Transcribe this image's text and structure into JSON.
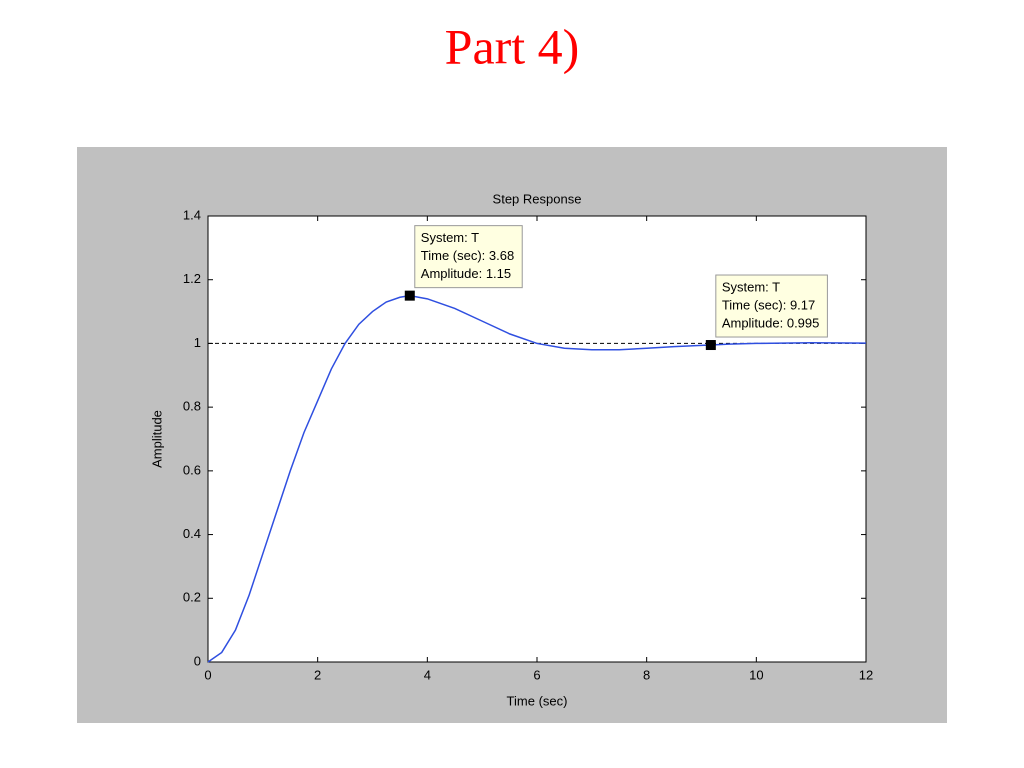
{
  "slide_title": "Part 4)",
  "chart_data": {
    "type": "line",
    "title": "Step Response",
    "x_label": "Time (sec)",
    "y_label": "Amplitude",
    "x": [
      0,
      0.25,
      0.5,
      0.75,
      1,
      1.25,
      1.5,
      1.75,
      2,
      2.25,
      2.5,
      2.75,
      3,
      3.25,
      3.5,
      3.68,
      4,
      4.5,
      5,
      5.5,
      6,
      6.5,
      7,
      7.5,
      8,
      8.5,
      9,
      9.17,
      9.5,
      10,
      11,
      12
    ],
    "series": [
      {
        "name": "T",
        "color": "#2f4fe0",
        "values": [
          0,
          0.03,
          0.1,
          0.21,
          0.34,
          0.47,
          0.6,
          0.72,
          0.82,
          0.92,
          1.0,
          1.06,
          1.1,
          1.13,
          1.145,
          1.15,
          1.14,
          1.11,
          1.07,
          1.03,
          1.0,
          0.985,
          0.98,
          0.98,
          0.985,
          0.99,
          0.994,
          0.995,
          0.998,
          1.0,
          1.002,
          1.001
        ]
      }
    ],
    "reference_line": 1,
    "xlim": [
      0,
      12
    ],
    "xticks": [
      0,
      2,
      4,
      6,
      8,
      10,
      12
    ],
    "ylim": [
      0,
      1.4
    ],
    "yticks": [
      0,
      0.2,
      0.4,
      0.6,
      0.8,
      1,
      1.2,
      1.4
    ],
    "annotations": [
      {
        "x": 3.68,
        "y": 1.15,
        "lines": [
          "System: T",
          "Time (sec): 3.68",
          "Amplitude: 1.15"
        ]
      },
      {
        "x": 9.17,
        "y": 0.995,
        "lines": [
          "System: T",
          "Time (sec): 9.17",
          "Amplitude: 0.995"
        ]
      }
    ]
  }
}
